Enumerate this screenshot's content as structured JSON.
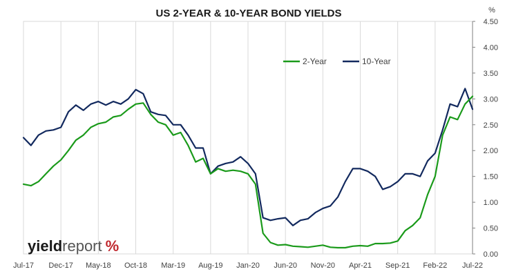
{
  "chart_data": {
    "type": "line",
    "title": "US 2-YEAR & 10-YEAR BOND YIELDS",
    "ylabel": "%",
    "ylim": [
      0,
      4.5
    ],
    "y_ticks": [
      "0.00",
      "0.50",
      "1.00",
      "1.50",
      "2.00",
      "2.50",
      "3.00",
      "3.50",
      "4.00",
      "4.50"
    ],
    "x_ticks": [
      "Jul-17",
      "Dec-17",
      "May-18",
      "Oct-18",
      "Mar-19",
      "Aug-19",
      "Jan-20",
      "Jun-20",
      "Nov-20",
      "Apr-21",
      "Sep-21",
      "Feb-22",
      "Jul-22"
    ],
    "grid": "vertical",
    "legend_position": "top-right",
    "x": [
      "Jul-17",
      "Aug-17",
      "Sep-17",
      "Oct-17",
      "Nov-17",
      "Dec-17",
      "Jan-18",
      "Feb-18",
      "Mar-18",
      "Apr-18",
      "May-18",
      "Jun-18",
      "Jul-18",
      "Aug-18",
      "Sep-18",
      "Oct-18",
      "Nov-18",
      "Dec-18",
      "Jan-19",
      "Feb-19",
      "Mar-19",
      "Apr-19",
      "May-19",
      "Jun-19",
      "Jul-19",
      "Aug-19",
      "Sep-19",
      "Oct-19",
      "Nov-19",
      "Dec-19",
      "Jan-20",
      "Feb-20",
      "Mar-20",
      "Apr-20",
      "May-20",
      "Jun-20",
      "Jul-20",
      "Aug-20",
      "Sep-20",
      "Oct-20",
      "Nov-20",
      "Dec-20",
      "Jan-21",
      "Feb-21",
      "Mar-21",
      "Apr-21",
      "May-21",
      "Jun-21",
      "Jul-21",
      "Aug-21",
      "Sep-21",
      "Oct-21",
      "Nov-21",
      "Dec-21",
      "Jan-22",
      "Feb-22",
      "Mar-22",
      "Apr-22",
      "May-22",
      "Jun-22",
      "Jul-22"
    ],
    "series": [
      {
        "name": "2-Year",
        "color": "#1a9a1a",
        "values": [
          1.35,
          1.32,
          1.4,
          1.55,
          1.7,
          1.82,
          2.0,
          2.2,
          2.3,
          2.45,
          2.52,
          2.55,
          2.65,
          2.68,
          2.8,
          2.9,
          2.92,
          2.7,
          2.55,
          2.5,
          2.3,
          2.35,
          2.1,
          1.78,
          1.85,
          1.55,
          1.65,
          1.6,
          1.62,
          1.6,
          1.55,
          1.35,
          0.4,
          0.22,
          0.17,
          0.18,
          0.15,
          0.14,
          0.13,
          0.15,
          0.17,
          0.13,
          0.12,
          0.12,
          0.15,
          0.16,
          0.15,
          0.2,
          0.2,
          0.21,
          0.25,
          0.45,
          0.55,
          0.7,
          1.15,
          1.5,
          2.3,
          2.65,
          2.6,
          2.9,
          3.05
        ]
      },
      {
        "name": "10-Year",
        "color": "#12295e",
        "values": [
          2.25,
          2.1,
          2.3,
          2.38,
          2.4,
          2.45,
          2.75,
          2.88,
          2.78,
          2.9,
          2.95,
          2.88,
          2.95,
          2.9,
          3.0,
          3.18,
          3.1,
          2.75,
          2.7,
          2.68,
          2.5,
          2.5,
          2.3,
          2.05,
          2.05,
          1.55,
          1.7,
          1.75,
          1.78,
          1.88,
          1.75,
          1.55,
          0.7,
          0.65,
          0.68,
          0.7,
          0.55,
          0.65,
          0.68,
          0.8,
          0.88,
          0.93,
          1.1,
          1.4,
          1.65,
          1.65,
          1.6,
          1.5,
          1.25,
          1.3,
          1.4,
          1.55,
          1.55,
          1.5,
          1.8,
          1.95,
          2.4,
          2.9,
          2.85,
          3.2,
          2.8
        ]
      }
    ]
  },
  "logo": {
    "word_bold": "yield",
    "word_light": "report",
    "symbol": "%"
  }
}
